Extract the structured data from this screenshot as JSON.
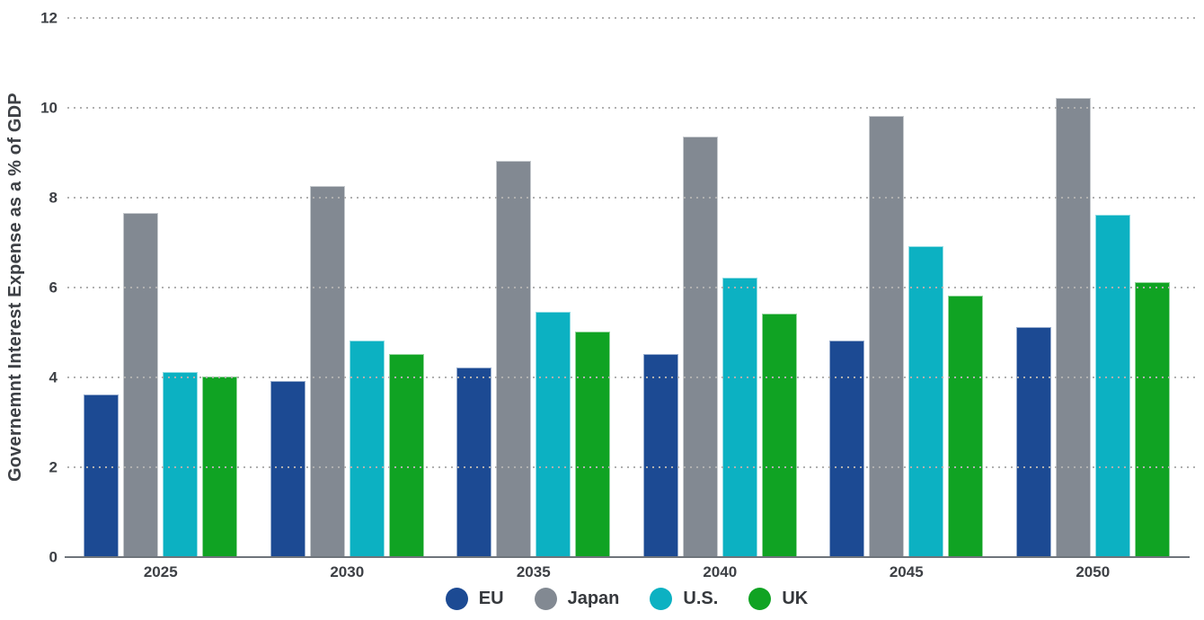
{
  "colors": {
    "text": "#3d4045",
    "grid": "#b0b0b0",
    "axis": "#6e747b",
    "background": "#ffffff"
  },
  "chart_data": {
    "type": "bar",
    "title": "",
    "xlabel": "",
    "ylabel": "Governemnt Interest Expense as a % of GDP",
    "categories": [
      "2025",
      "2030",
      "2035",
      "2040",
      "2045",
      "2050"
    ],
    "series": [
      {
        "name": "EU",
        "color": "#1C4A93",
        "values": [
          3.6,
          3.9,
          4.2,
          4.5,
          4.8,
          5.1
        ]
      },
      {
        "name": "Japan",
        "color": "#828992",
        "values": [
          7.65,
          8.25,
          8.8,
          9.35,
          9.8,
          10.2
        ]
      },
      {
        "name": "U.S.",
        "color": "#0CB1C2",
        "values": [
          4.1,
          4.8,
          5.45,
          6.2,
          6.9,
          7.6
        ]
      },
      {
        "name": "UK",
        "color": "#10A323",
        "values": [
          4.0,
          4.5,
          5.0,
          5.4,
          5.8,
          6.1
        ]
      }
    ],
    "ylim": [
      0,
      12
    ],
    "yticks": [
      0,
      2,
      4,
      6,
      8,
      10,
      12
    ],
    "grid": "horizontal-dotted",
    "legend_position": "bottom-center"
  }
}
